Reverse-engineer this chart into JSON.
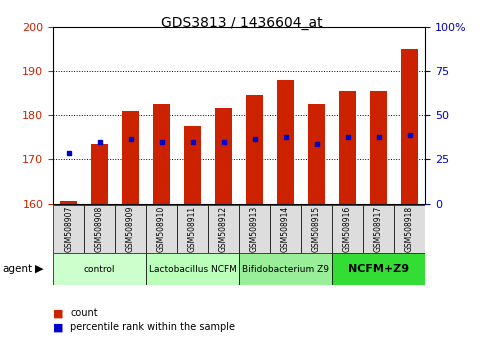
{
  "title": "GDS3813 / 1436604_at",
  "samples": [
    "GSM508907",
    "GSM508908",
    "GSM508909",
    "GSM508910",
    "GSM508911",
    "GSM508912",
    "GSM508913",
    "GSM508914",
    "GSM508915",
    "GSM508916",
    "GSM508917",
    "GSM508918"
  ],
  "count_values": [
    160.5,
    173.5,
    181.0,
    182.5,
    177.5,
    181.5,
    184.5,
    188.0,
    182.5,
    185.5,
    185.5,
    195.0
  ],
  "percentile_values": [
    171.5,
    174.0,
    174.5,
    174.0,
    174.0,
    174.0,
    174.5,
    175.0,
    173.5,
    175.0,
    175.0,
    175.5
  ],
  "ymin": 160,
  "ymax": 200,
  "yticks_left": [
    160,
    170,
    180,
    190,
    200
  ],
  "yticks_right_pct": [
    0,
    25,
    50,
    75,
    100
  ],
  "bar_color": "#cc2200",
  "dot_color": "#0000cc",
  "background_color": "#ffffff",
  "title_fontsize": 10,
  "agent_groups": [
    {
      "label": "control",
      "start": 0,
      "end": 3,
      "color": "#ccffcc"
    },
    {
      "label": "Lactobacillus NCFM",
      "start": 3,
      "end": 6,
      "color": "#bbffbb"
    },
    {
      "label": "Bifidobacterium Z9",
      "start": 6,
      "end": 9,
      "color": "#99ee99"
    },
    {
      "label": "NCFM+Z9",
      "start": 9,
      "end": 12,
      "color": "#33dd33"
    }
  ],
  "bar_width": 0.55,
  "tick_color_left": "#cc2200",
  "tick_color_right": "#0000cc"
}
